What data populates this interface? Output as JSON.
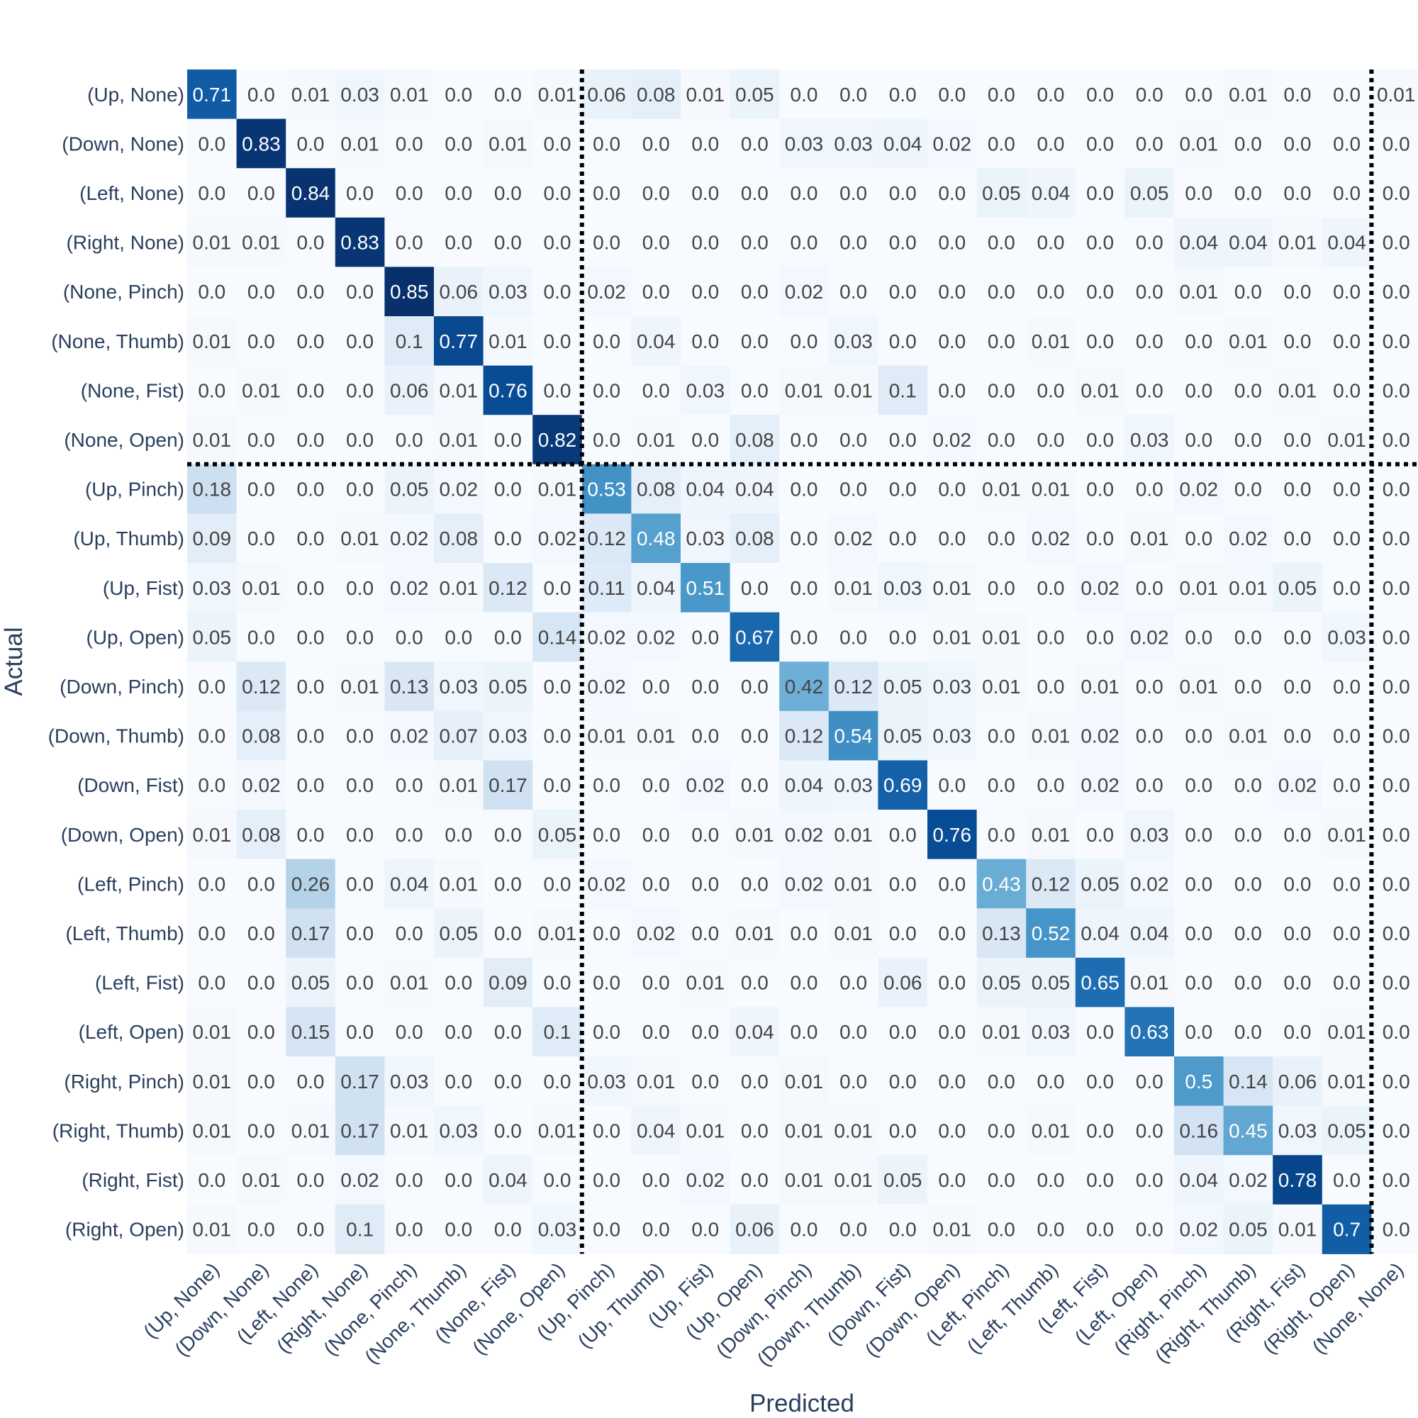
{
  "chart_data": {
    "type": "heatmap",
    "title": "",
    "xlabel": "Predicted",
    "ylabel": "Actual",
    "colorscale": "Blues",
    "colors": {
      "low": "#f7fbff",
      "high": "#08306b",
      "divider": "#000000",
      "text_dark": "#444444",
      "text_light": "#ffffff"
    },
    "dividers": {
      "after_column_indices": [
        7,
        23
      ],
      "after_row_indices": [
        7
      ]
    },
    "x_categories": [
      "(Up, None)",
      "(Down, None)",
      "(Left, None)",
      "(Right, None)",
      "(None, Pinch)",
      "(None, Thumb)",
      "(None, Fist)",
      "(None, Open)",
      "(Up, Pinch)",
      "(Up, Thumb)",
      "(Up, Fist)",
      "(Up, Open)",
      "(Down, Pinch)",
      "(Down, Thumb)",
      "(Down, Fist)",
      "(Down, Open)",
      "(Left, Pinch)",
      "(Left, Thumb)",
      "(Left, Fist)",
      "(Left, Open)",
      "(Right, Pinch)",
      "(Right, Thumb)",
      "(Right, Fist)",
      "(Right, Open)",
      "(None, None)"
    ],
    "y_categories": [
      "(Up, None)",
      "(Down, None)",
      "(Left, None)",
      "(Right, None)",
      "(None, Pinch)",
      "(None, Thumb)",
      "(None, Fist)",
      "(None, Open)",
      "(Up, Pinch)",
      "(Up, Thumb)",
      "(Up, Fist)",
      "(Up, Open)",
      "(Down, Pinch)",
      "(Down, Thumb)",
      "(Down, Fist)",
      "(Down, Open)",
      "(Left, Pinch)",
      "(Left, Thumb)",
      "(Left, Fist)",
      "(Left, Open)",
      "(Right, Pinch)",
      "(Right, Thumb)",
      "(Right, Fist)",
      "(Right, Open)"
    ],
    "values": [
      [
        0.71,
        0.0,
        0.01,
        0.03,
        0.01,
        0.0,
        0.0,
        0.01,
        0.06,
        0.08,
        0.01,
        0.05,
        0.0,
        0.0,
        0.0,
        0.0,
        0.0,
        0.0,
        0.0,
        0.0,
        0.0,
        0.01,
        0.0,
        0.0,
        0.01
      ],
      [
        0.0,
        0.83,
        0.0,
        0.01,
        0.0,
        0.0,
        0.01,
        0.0,
        0.0,
        0.0,
        0.0,
        0.0,
        0.03,
        0.03,
        0.04,
        0.02,
        0.0,
        0.0,
        0.0,
        0.0,
        0.01,
        0.0,
        0.0,
        0.0,
        0.0
      ],
      [
        0.0,
        0.0,
        0.84,
        0.0,
        0.0,
        0.0,
        0.0,
        0.0,
        0.0,
        0.0,
        0.0,
        0.0,
        0.0,
        0.0,
        0.0,
        0.0,
        0.05,
        0.04,
        0.0,
        0.05,
        0.0,
        0.0,
        0.0,
        0.0,
        0.0
      ],
      [
        0.01,
        0.01,
        0.0,
        0.83,
        0.0,
        0.0,
        0.0,
        0.0,
        0.0,
        0.0,
        0.0,
        0.0,
        0.0,
        0.0,
        0.0,
        0.0,
        0.0,
        0.0,
        0.0,
        0.0,
        0.04,
        0.04,
        0.01,
        0.04,
        0.0
      ],
      [
        0.0,
        0.0,
        0.0,
        0.0,
        0.85,
        0.06,
        0.03,
        0.0,
        0.02,
        0.0,
        0.0,
        0.0,
        0.02,
        0.0,
        0.0,
        0.0,
        0.0,
        0.0,
        0.0,
        0.0,
        0.01,
        0.0,
        0.0,
        0.0,
        0.0
      ],
      [
        0.01,
        0.0,
        0.0,
        0.0,
        0.1,
        0.77,
        0.01,
        0.0,
        0.0,
        0.04,
        0.0,
        0.0,
        0.0,
        0.03,
        0.0,
        0.0,
        0.0,
        0.01,
        0.0,
        0.0,
        0.0,
        0.01,
        0.0,
        0.0,
        0.0
      ],
      [
        0.0,
        0.01,
        0.0,
        0.0,
        0.06,
        0.01,
        0.76,
        0.0,
        0.0,
        0.0,
        0.03,
        0.0,
        0.01,
        0.01,
        0.1,
        0.0,
        0.0,
        0.0,
        0.01,
        0.0,
        0.0,
        0.0,
        0.01,
        0.0,
        0.0
      ],
      [
        0.01,
        0.0,
        0.0,
        0.0,
        0.0,
        0.01,
        0.0,
        0.82,
        0.0,
        0.01,
        0.0,
        0.08,
        0.0,
        0.0,
        0.0,
        0.02,
        0.0,
        0.0,
        0.0,
        0.03,
        0.0,
        0.0,
        0.0,
        0.01,
        0.0
      ],
      [
        0.18,
        0.0,
        0.0,
        0.0,
        0.05,
        0.02,
        0.0,
        0.01,
        0.53,
        0.08,
        0.04,
        0.04,
        0.0,
        0.0,
        0.0,
        0.0,
        0.01,
        0.01,
        0.0,
        0.0,
        0.02,
        0.0,
        0.0,
        0.0,
        0.0
      ],
      [
        0.09,
        0.0,
        0.0,
        0.01,
        0.02,
        0.08,
        0.0,
        0.02,
        0.12,
        0.48,
        0.03,
        0.08,
        0.0,
        0.02,
        0.0,
        0.0,
        0.0,
        0.02,
        0.0,
        0.01,
        0.0,
        0.02,
        0.0,
        0.0,
        0.0
      ],
      [
        0.03,
        0.01,
        0.0,
        0.0,
        0.02,
        0.01,
        0.12,
        0.0,
        0.11,
        0.04,
        0.51,
        0.0,
        0.0,
        0.01,
        0.03,
        0.01,
        0.0,
        0.0,
        0.02,
        0.0,
        0.01,
        0.01,
        0.05,
        0.0,
        0.0
      ],
      [
        0.05,
        0.0,
        0.0,
        0.0,
        0.0,
        0.0,
        0.0,
        0.14,
        0.02,
        0.02,
        0.0,
        0.67,
        0.0,
        0.0,
        0.0,
        0.01,
        0.01,
        0.0,
        0.0,
        0.02,
        0.0,
        0.0,
        0.0,
        0.03,
        0.0
      ],
      [
        0.0,
        0.12,
        0.0,
        0.01,
        0.13,
        0.03,
        0.05,
        0.0,
        0.02,
        0.0,
        0.0,
        0.0,
        0.42,
        0.12,
        0.05,
        0.03,
        0.01,
        0.0,
        0.01,
        0.0,
        0.01,
        0.0,
        0.0,
        0.0,
        0.0
      ],
      [
        0.0,
        0.08,
        0.0,
        0.0,
        0.02,
        0.07,
        0.03,
        0.0,
        0.01,
        0.01,
        0.0,
        0.0,
        0.12,
        0.54,
        0.05,
        0.03,
        0.0,
        0.01,
        0.02,
        0.0,
        0.0,
        0.01,
        0.0,
        0.0,
        0.0
      ],
      [
        0.0,
        0.02,
        0.0,
        0.0,
        0.0,
        0.01,
        0.17,
        0.0,
        0.0,
        0.0,
        0.02,
        0.0,
        0.04,
        0.03,
        0.69,
        0.0,
        0.0,
        0.0,
        0.02,
        0.0,
        0.0,
        0.0,
        0.02,
        0.0,
        0.0
      ],
      [
        0.01,
        0.08,
        0.0,
        0.0,
        0.0,
        0.0,
        0.0,
        0.05,
        0.0,
        0.0,
        0.0,
        0.01,
        0.02,
        0.01,
        0.0,
        0.76,
        0.0,
        0.01,
        0.0,
        0.03,
        0.0,
        0.0,
        0.0,
        0.01,
        0.0
      ],
      [
        0.0,
        0.0,
        0.26,
        0.0,
        0.04,
        0.01,
        0.0,
        0.0,
        0.02,
        0.0,
        0.0,
        0.0,
        0.02,
        0.01,
        0.0,
        0.0,
        0.43,
        0.12,
        0.05,
        0.02,
        0.0,
        0.0,
        0.0,
        0.0,
        0.0
      ],
      [
        0.0,
        0.0,
        0.17,
        0.0,
        0.0,
        0.05,
        0.0,
        0.01,
        0.0,
        0.02,
        0.0,
        0.01,
        0.0,
        0.01,
        0.0,
        0.0,
        0.13,
        0.52,
        0.04,
        0.04,
        0.0,
        0.0,
        0.0,
        0.0,
        0.0
      ],
      [
        0.0,
        0.0,
        0.05,
        0.0,
        0.01,
        0.0,
        0.09,
        0.0,
        0.0,
        0.0,
        0.01,
        0.0,
        0.0,
        0.0,
        0.06,
        0.0,
        0.05,
        0.05,
        0.65,
        0.01,
        0.0,
        0.0,
        0.0,
        0.0,
        0.0
      ],
      [
        0.01,
        0.0,
        0.15,
        0.0,
        0.0,
        0.0,
        0.0,
        0.1,
        0.0,
        0.0,
        0.0,
        0.04,
        0.0,
        0.0,
        0.0,
        0.0,
        0.01,
        0.03,
        0.0,
        0.63,
        0.0,
        0.0,
        0.0,
        0.01,
        0.0
      ],
      [
        0.01,
        0.0,
        0.0,
        0.17,
        0.03,
        0.0,
        0.0,
        0.0,
        0.03,
        0.01,
        0.0,
        0.0,
        0.01,
        0.0,
        0.0,
        0.0,
        0.0,
        0.0,
        0.0,
        0.0,
        0.5,
        0.14,
        0.06,
        0.01,
        0.0
      ],
      [
        0.01,
        0.0,
        0.01,
        0.17,
        0.01,
        0.03,
        0.0,
        0.01,
        0.0,
        0.04,
        0.01,
        0.0,
        0.01,
        0.01,
        0.0,
        0.0,
        0.0,
        0.01,
        0.0,
        0.0,
        0.16,
        0.45,
        0.03,
        0.05,
        0.0
      ],
      [
        0.0,
        0.01,
        0.0,
        0.02,
        0.0,
        0.0,
        0.04,
        0.0,
        0.0,
        0.0,
        0.02,
        0.0,
        0.01,
        0.01,
        0.05,
        0.0,
        0.0,
        0.0,
        0.0,
        0.0,
        0.04,
        0.02,
        0.78,
        0.0,
        0.0
      ],
      [
        0.01,
        0.0,
        0.0,
        0.1,
        0.0,
        0.0,
        0.0,
        0.03,
        0.0,
        0.0,
        0.0,
        0.06,
        0.0,
        0.0,
        0.0,
        0.01,
        0.0,
        0.0,
        0.0,
        0.0,
        0.02,
        0.05,
        0.01,
        0.7,
        0.0
      ]
    ]
  }
}
